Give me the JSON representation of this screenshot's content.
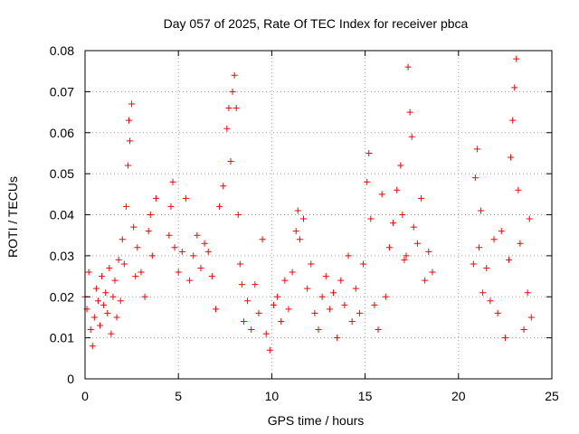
{
  "chart_data": {
    "type": "scatter",
    "title": "Day 057 of 2025, Rate Of TEC Index for receiver pbca",
    "xlabel": "GPS time / hours",
    "ylabel": "ROTI / TECUs",
    "xlim": [
      0,
      25
    ],
    "ylim": [
      0,
      0.08
    ],
    "xticks": [
      "0",
      "5",
      "10",
      "15",
      "20",
      "25"
    ],
    "yticks": [
      "0",
      "0.01",
      "0.02",
      "0.03",
      "0.04",
      "0.05",
      "0.06",
      "0.07",
      "0.08"
    ],
    "grid": true,
    "marker": "+",
    "series": [
      {
        "name": "ROTI",
        "color": "#ff0000",
        "points": [
          [
            0.0,
            0.02
          ],
          [
            0.1,
            0.017
          ],
          [
            0.2,
            0.026
          ],
          [
            0.3,
            0.012
          ],
          [
            0.4,
            0.008
          ],
          [
            0.5,
            0.015
          ],
          [
            0.6,
            0.022
          ],
          [
            0.7,
            0.019
          ],
          [
            0.8,
            0.013
          ],
          [
            0.9,
            0.025
          ],
          [
            1.0,
            0.018
          ],
          [
            1.1,
            0.021
          ],
          [
            1.2,
            0.016
          ],
          [
            1.3,
            0.027
          ],
          [
            1.4,
            0.011
          ],
          [
            1.5,
            0.02
          ],
          [
            1.6,
            0.024
          ],
          [
            1.7,
            0.015
          ],
          [
            1.8,
            0.029
          ],
          [
            1.9,
            0.019
          ],
          [
            2.0,
            0.034
          ],
          [
            2.1,
            0.028
          ],
          [
            2.2,
            0.042
          ],
          [
            2.3,
            0.052
          ],
          [
            2.35,
            0.063
          ],
          [
            2.4,
            0.058
          ],
          [
            2.5,
            0.067
          ],
          [
            2.6,
            0.037
          ],
          [
            2.7,
            0.025
          ],
          [
            2.8,
            0.032
          ],
          [
            3.0,
            0.026
          ],
          [
            3.2,
            0.02
          ],
          [
            3.4,
            0.036
          ],
          [
            3.5,
            0.04
          ],
          [
            3.6,
            0.03
          ],
          [
            3.8,
            0.044
          ],
          [
            4.5,
            0.035
          ],
          [
            4.6,
            0.042
          ],
          [
            4.7,
            0.048
          ],
          [
            4.8,
            0.032
          ],
          [
            5.0,
            0.026
          ],
          [
            5.2,
            0.031
          ],
          [
            5.4,
            0.044
          ],
          [
            5.6,
            0.024
          ],
          [
            5.8,
            0.03
          ],
          [
            6.0,
            0.035
          ],
          [
            6.2,
            0.027
          ],
          [
            6.4,
            0.033
          ],
          [
            6.6,
            0.031
          ],
          [
            6.8,
            0.025
          ],
          [
            7.0,
            0.017
          ],
          [
            7.2,
            0.042
          ],
          [
            7.4,
            0.047
          ],
          [
            7.6,
            0.061
          ],
          [
            7.7,
            0.066
          ],
          [
            7.8,
            0.053
          ],
          [
            7.9,
            0.07
          ],
          [
            8.0,
            0.074
          ],
          [
            8.1,
            0.066
          ],
          [
            8.2,
            0.04
          ],
          [
            8.3,
            0.028
          ],
          [
            8.4,
            0.023
          ],
          [
            8.5,
            0.014
          ],
          [
            8.7,
            0.019
          ],
          [
            8.9,
            0.012
          ],
          [
            9.1,
            0.023
          ],
          [
            9.3,
            0.016
          ],
          [
            9.5,
            0.034
          ],
          [
            9.7,
            0.011
          ],
          [
            9.9,
            0.007
          ],
          [
            10.1,
            0.018
          ],
          [
            10.3,
            0.02
          ],
          [
            10.5,
            0.014
          ],
          [
            10.7,
            0.024
          ],
          [
            10.9,
            0.017
          ],
          [
            11.1,
            0.026
          ],
          [
            11.3,
            0.036
          ],
          [
            11.4,
            0.041
          ],
          [
            11.5,
            0.034
          ],
          [
            11.7,
            0.039
          ],
          [
            11.9,
            0.022
          ],
          [
            12.1,
            0.028
          ],
          [
            12.3,
            0.016
          ],
          [
            12.5,
            0.012
          ],
          [
            12.7,
            0.02
          ],
          [
            12.9,
            0.025
          ],
          [
            13.1,
            0.017
          ],
          [
            13.3,
            0.021
          ],
          [
            13.5,
            0.01
          ],
          [
            13.7,
            0.024
          ],
          [
            13.9,
            0.018
          ],
          [
            14.1,
            0.03
          ],
          [
            14.3,
            0.014
          ],
          [
            14.5,
            0.022
          ],
          [
            14.7,
            0.016
          ],
          [
            14.9,
            0.028
          ],
          [
            15.1,
            0.048
          ],
          [
            15.2,
            0.055
          ],
          [
            15.3,
            0.039
          ],
          [
            15.5,
            0.018
          ],
          [
            15.7,
            0.012
          ],
          [
            15.9,
            0.045
          ],
          [
            16.1,
            0.02
          ],
          [
            16.3,
            0.032
          ],
          [
            16.5,
            0.038
          ],
          [
            16.7,
            0.046
          ],
          [
            16.9,
            0.052
          ],
          [
            17.0,
            0.04
          ],
          [
            17.1,
            0.029
          ],
          [
            17.2,
            0.03
          ],
          [
            17.3,
            0.076
          ],
          [
            17.4,
            0.065
          ],
          [
            17.5,
            0.059
          ],
          [
            17.6,
            0.037
          ],
          [
            17.8,
            0.033
          ],
          [
            18.0,
            0.044
          ],
          [
            18.2,
            0.024
          ],
          [
            18.4,
            0.031
          ],
          [
            18.6,
            0.026
          ],
          [
            20.8,
            0.028
          ],
          [
            20.9,
            0.049
          ],
          [
            21.0,
            0.056
          ],
          [
            21.1,
            0.032
          ],
          [
            21.2,
            0.041
          ],
          [
            21.3,
            0.021
          ],
          [
            21.5,
            0.027
          ],
          [
            21.7,
            0.019
          ],
          [
            21.9,
            0.034
          ],
          [
            22.1,
            0.016
          ],
          [
            22.3,
            0.036
          ],
          [
            22.5,
            0.01
          ],
          [
            22.7,
            0.029
          ],
          [
            22.8,
            0.054
          ],
          [
            22.9,
            0.063
          ],
          [
            23.0,
            0.071
          ],
          [
            23.1,
            0.078
          ],
          [
            23.2,
            0.046
          ],
          [
            23.3,
            0.033
          ],
          [
            23.5,
            0.012
          ],
          [
            23.7,
            0.021
          ],
          [
            23.8,
            0.039
          ],
          [
            23.9,
            0.015
          ]
        ]
      }
    ]
  }
}
